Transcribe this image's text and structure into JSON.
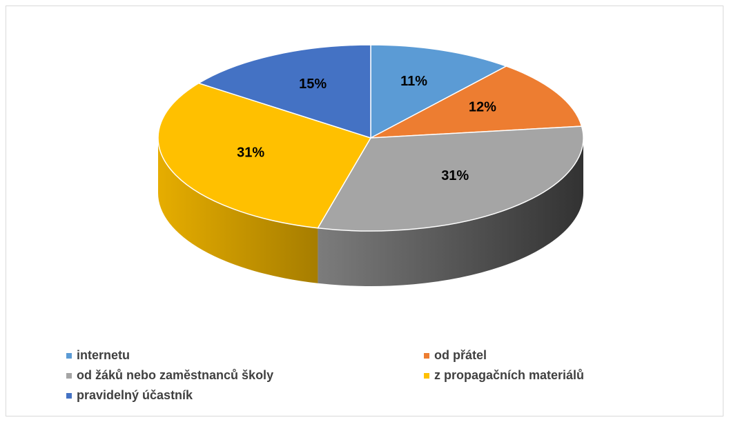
{
  "chart_data": {
    "type": "pie",
    "categories": [
      "internetu",
      "od přátel",
      "od žáků nebo zaměstnanců školy",
      "z propagačních materiálů",
      "pravidelný účastník"
    ],
    "values": [
      11,
      12,
      31,
      31,
      15
    ],
    "value_labels": [
      "11%",
      "12%",
      "31%",
      "31%",
      "15%"
    ],
    "colors": [
      "#5b9bd5",
      "#ed7d31",
      "#a5a5a5",
      "#ffc000",
      "#4472c4"
    ],
    "legend": "bottom"
  }
}
